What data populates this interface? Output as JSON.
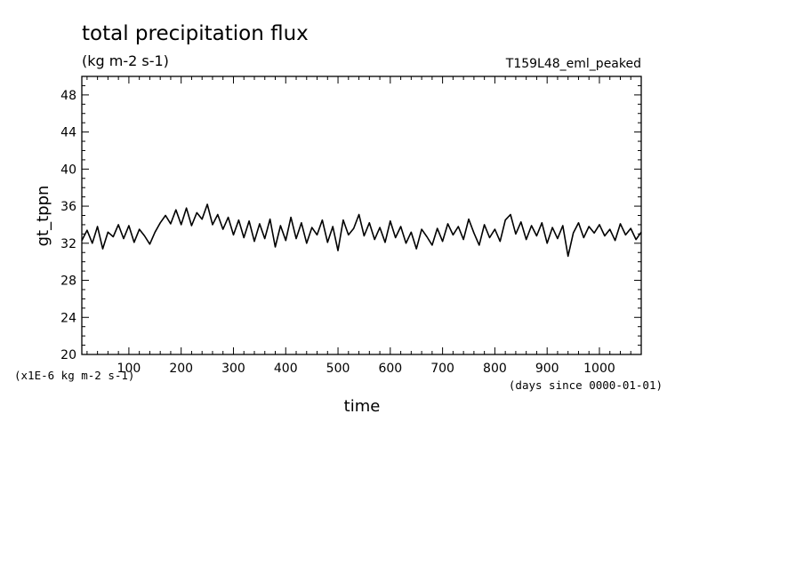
{
  "chart_data": {
    "type": "line",
    "title": "total precipitation flux",
    "subtitle": "(kg m-2 s-1)",
    "run_label": "T159L48_eml_peaked",
    "xlabel": "time",
    "x_units": "(days since 0000-01-01)",
    "ylabel": "gt_tppn",
    "y_multiplier_label": "(x1E-6 kg m-2 s-1)",
    "xlim": [
      10,
      1080
    ],
    "ylim": [
      20,
      50
    ],
    "x_tick_labels": [
      "100",
      "200",
      "300",
      "400",
      "500",
      "600",
      "700",
      "800",
      "900",
      "1000"
    ],
    "y_tick_labels": [
      "20",
      "24",
      "28",
      "32",
      "36",
      "40",
      "44",
      "48"
    ],
    "grid": false,
    "line_color": "#000000",
    "series": [
      {
        "x": [
          10,
          20,
          30,
          40,
          50,
          60,
          70,
          80,
          90,
          100,
          110,
          120,
          130,
          140,
          150,
          160,
          170,
          180,
          190,
          200,
          210,
          220,
          230,
          240,
          250,
          260,
          270,
          280,
          290,
          300,
          310,
          320,
          330,
          340,
          350,
          360,
          370,
          380,
          390,
          400,
          410,
          420,
          430,
          440,
          450,
          460,
          470,
          480,
          490,
          500,
          510,
          520,
          530,
          540,
          550,
          560,
          570,
          580,
          590,
          600,
          610,
          620,
          630,
          640,
          650,
          660,
          670,
          680,
          690,
          700,
          710,
          720,
          730,
          740,
          750,
          760,
          770,
          780,
          790,
          800,
          810,
          820,
          830,
          840,
          850,
          860,
          870,
          880,
          890,
          900,
          910,
          920,
          930,
          940,
          950,
          960,
          970,
          980,
          990,
          1000,
          1010,
          1020,
          1030,
          1040,
          1050,
          1060,
          1070,
          1080
        ],
        "y": [
          32.3,
          33.4,
          32.0,
          33.8,
          31.4,
          33.2,
          32.7,
          34.0,
          32.5,
          33.9,
          32.1,
          33.5,
          32.8,
          31.9,
          33.2,
          34.2,
          35.0,
          34.1,
          35.6,
          34.0,
          35.8,
          33.9,
          35.3,
          34.6,
          36.2,
          34.0,
          35.1,
          33.5,
          34.8,
          32.9,
          34.5,
          32.6,
          34.4,
          32.2,
          34.1,
          32.5,
          34.6,
          31.6,
          33.9,
          32.3,
          34.8,
          32.5,
          34.2,
          32.0,
          33.7,
          32.9,
          34.5,
          32.1,
          33.8,
          31.2,
          34.5,
          32.9,
          33.6,
          35.1,
          32.8,
          34.2,
          32.4,
          33.7,
          32.1,
          34.4,
          32.6,
          33.8,
          32.0,
          33.2,
          31.4,
          33.5,
          32.7,
          31.8,
          33.6,
          32.2,
          34.1,
          32.9,
          33.8,
          32.4,
          34.6,
          33.1,
          31.8,
          34.0,
          32.6,
          33.5,
          32.2,
          34.5,
          35.1,
          33.0,
          34.3,
          32.4,
          33.9,
          32.8,
          34.2,
          32.0,
          33.7,
          32.5,
          33.9,
          30.6,
          33.1,
          34.2,
          32.6,
          33.8,
          33.1,
          34.0,
          32.8,
          33.5,
          32.3,
          34.1,
          32.9,
          33.6,
          32.4,
          33.2
        ]
      }
    ]
  }
}
